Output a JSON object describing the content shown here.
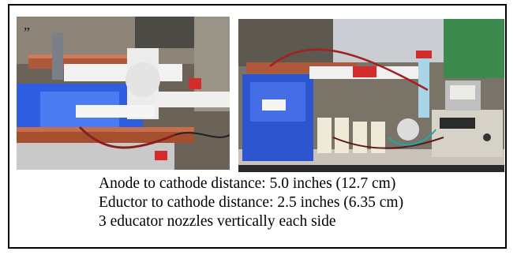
{
  "photos": {
    "left_mark": "”",
    "left_alt": "Close-up of anode and cathode copper bars over blue electrolyte tank with white PVC fittings",
    "right_alt": "Bench setup with blue electrolyte tank, bottles, flow meter and power supply"
  },
  "caption": {
    "line1": "Anode to cathode distance: 5.0 inches (12.7 cm)",
    "line2": "Eductor to cathode distance: 2.5 inches (6.35 cm)",
    "line3": "3 educator nozzles vertically each side"
  },
  "colors": {
    "electrolyte": "#2f5fe0",
    "copper": "#b0583c",
    "pvc": "#f2f2f2",
    "frame": "#000000"
  }
}
